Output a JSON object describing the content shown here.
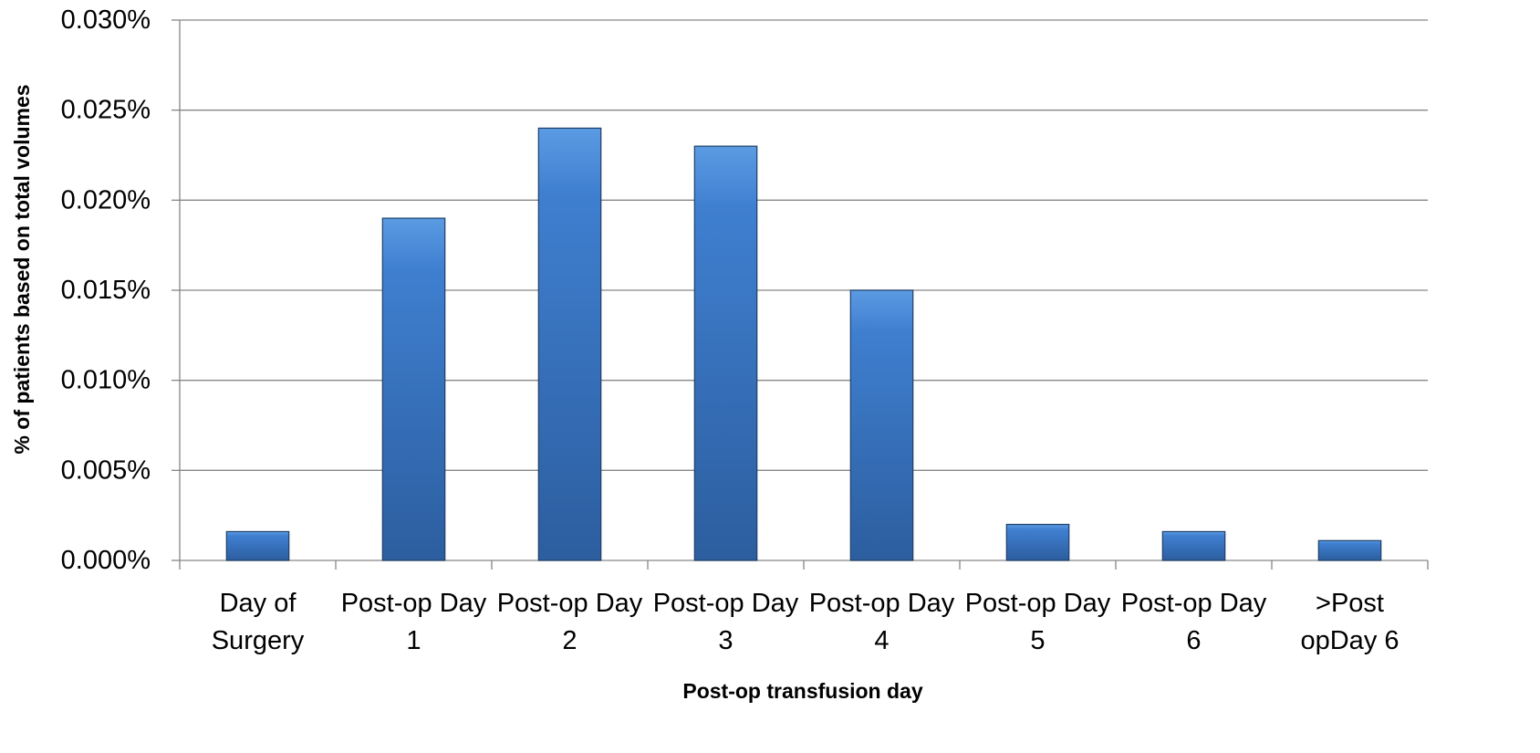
{
  "chart_data": {
    "type": "bar",
    "categories": [
      [
        "Day of",
        "Surgery"
      ],
      [
        "Post-op Day",
        "1"
      ],
      [
        "Post-op Day",
        "2"
      ],
      [
        "Post-op Day",
        "3"
      ],
      [
        "Post-op Day",
        "4"
      ],
      [
        "Post-op Day",
        "5"
      ],
      [
        "Post-op Day",
        "6"
      ],
      [
        ">Post",
        "opDay 6"
      ]
    ],
    "values": [
      0.0016,
      0.019,
      0.024,
      0.023,
      0.015,
      0.002,
      0.0016,
      0.0011
    ],
    "title": "",
    "xlabel": "Post-op transfusion day",
    "ylabel": "% of patients based on total volumes",
    "ylim": [
      0,
      0.03
    ],
    "yticks": [
      "0.000%",
      "0.005%",
      "0.010%",
      "0.015%",
      "0.020%",
      "0.025%",
      "0.030%"
    ],
    "grid": true,
    "legend": "none",
    "colors": {
      "bar_top": "#5B9BE3",
      "bar_mid": "#3F7FD0",
      "bar_bottom": "#2C5E9F",
      "bar_edge": "#1F3F66",
      "grid": "#868686",
      "axis": "#868686"
    }
  }
}
